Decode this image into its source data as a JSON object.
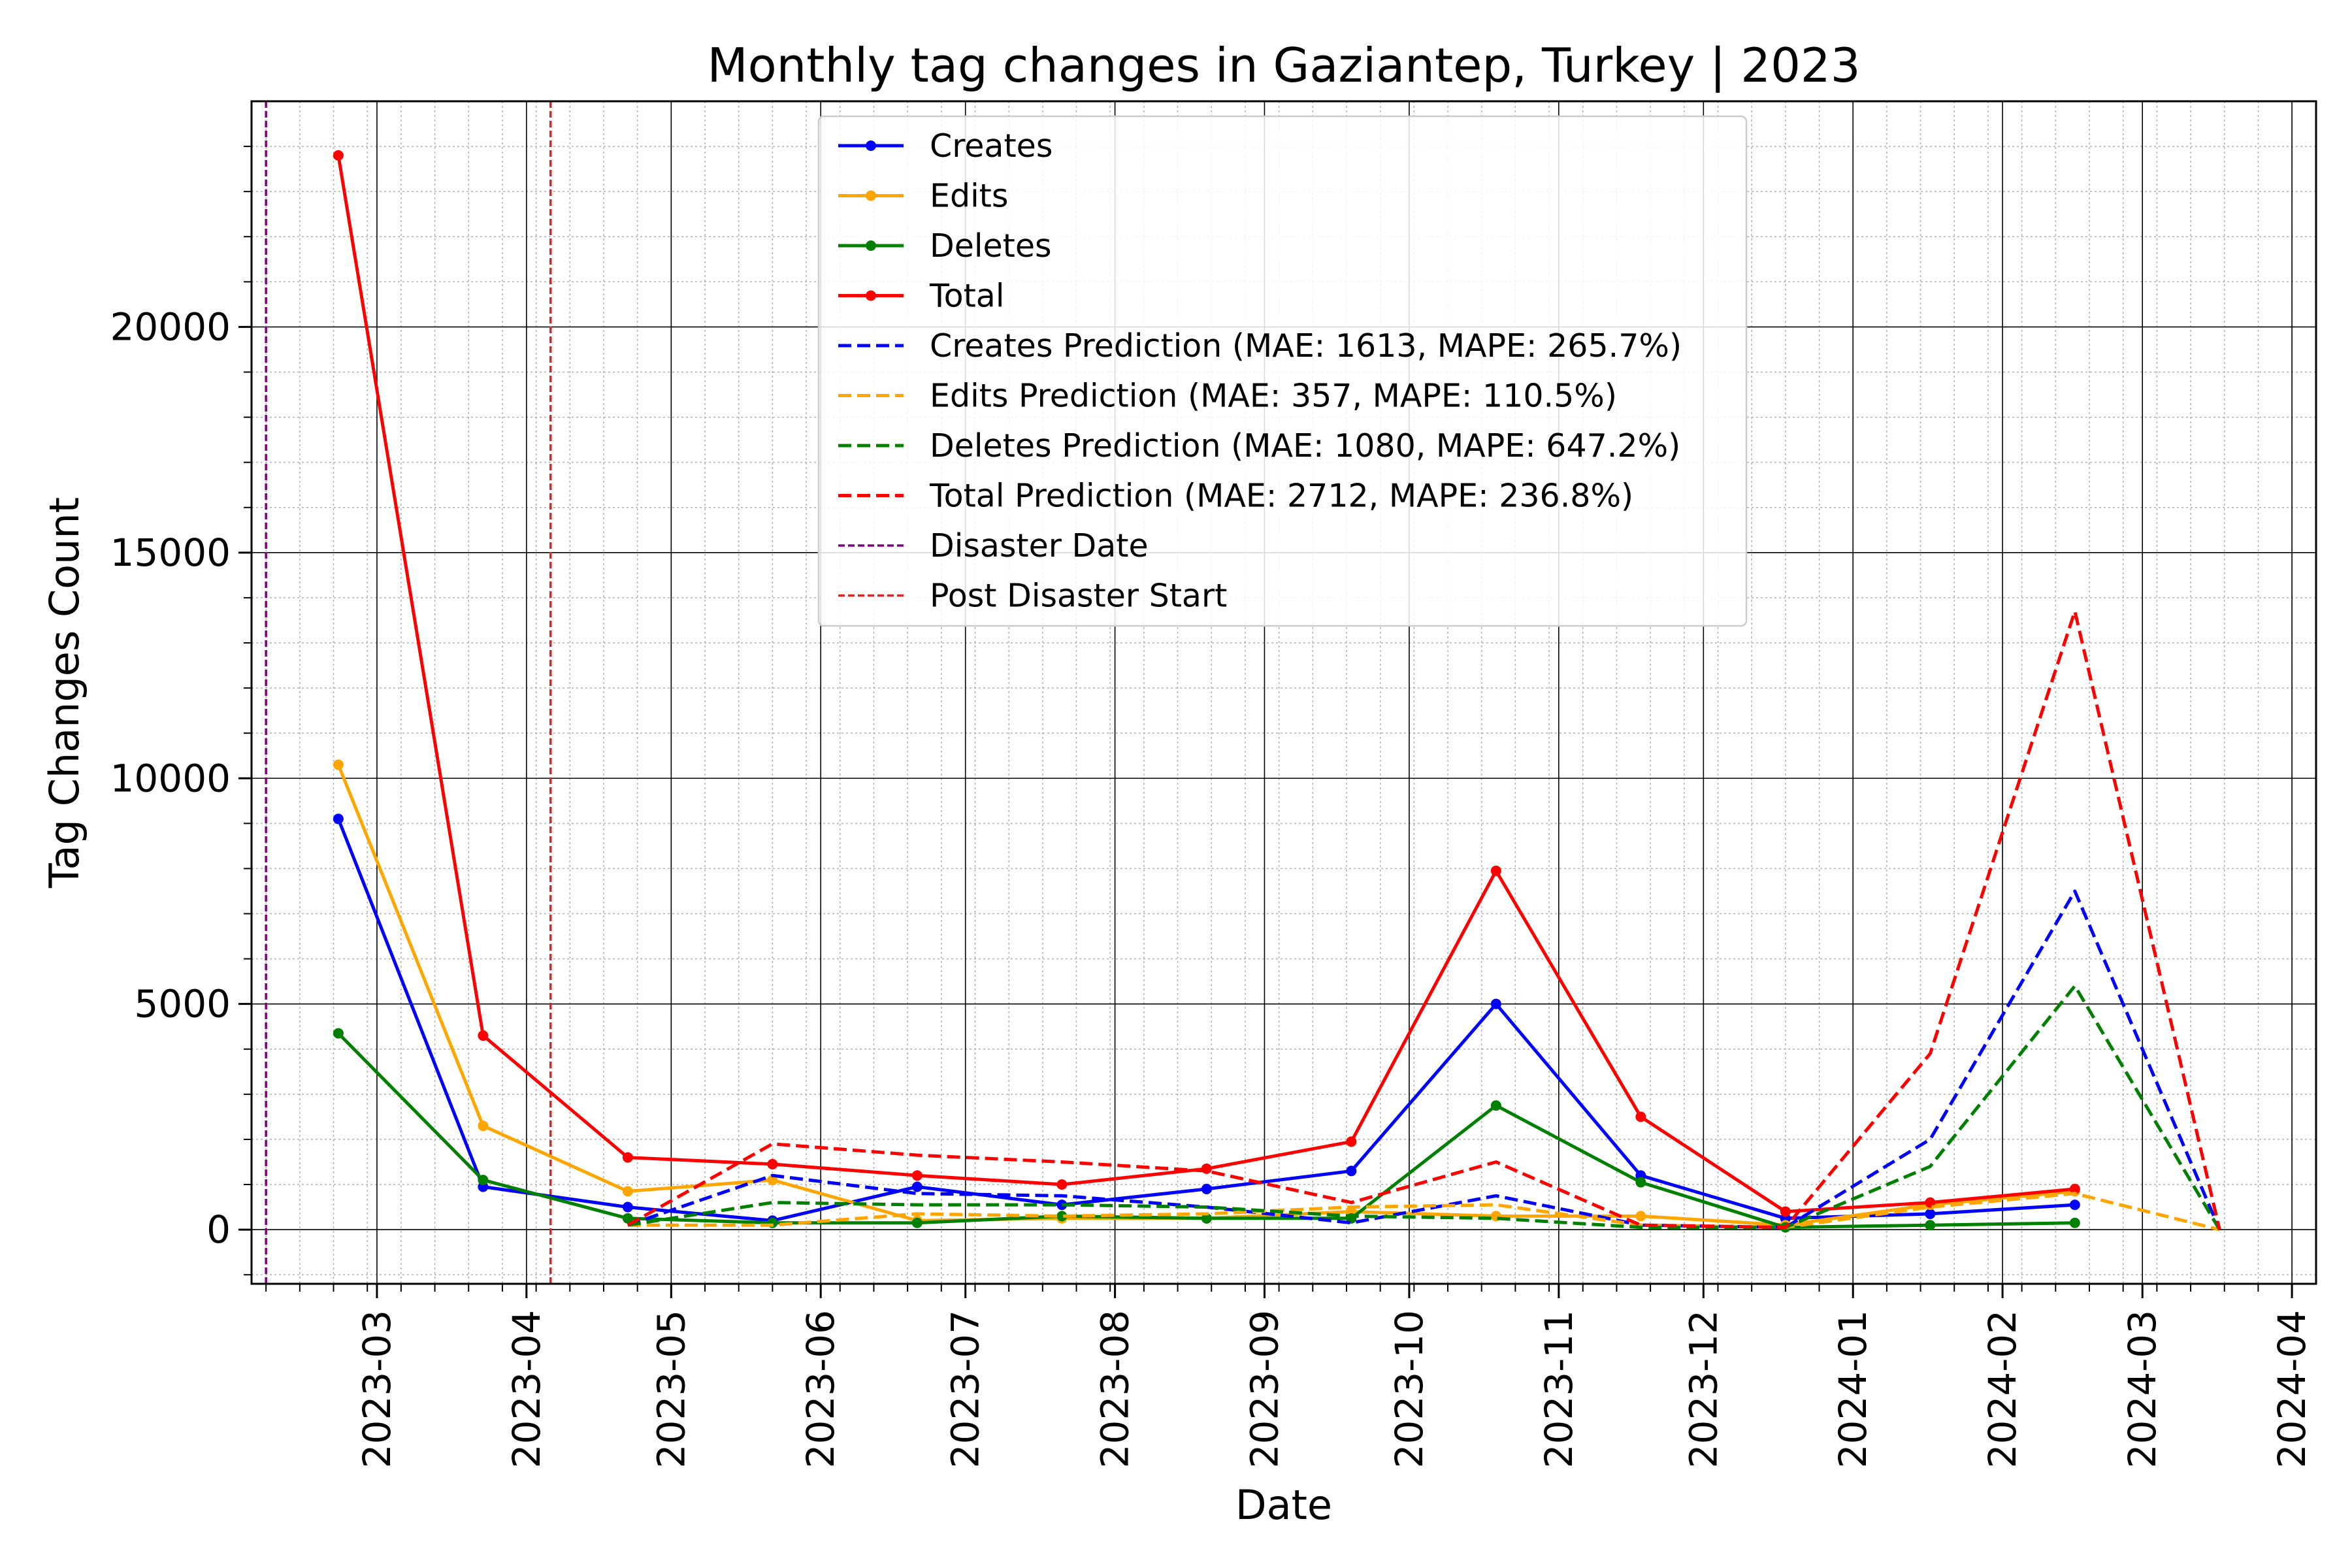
{
  "chart_data": {
    "type": "line",
    "title": "Monthly tag changes in Gaziantep, Turkey | 2023",
    "xlabel": "Date",
    "ylabel": "Tag Changes Count",
    "x_axis_type": "date",
    "xlim": [
      "2023-02-03",
      "2024-04-06"
    ],
    "ylim": [
      -1200,
      25000
    ],
    "y_ticks": [
      0,
      5000,
      10000,
      15000,
      20000
    ],
    "y_tick_labels": [
      "0",
      "5000",
      "10000",
      "15000",
      "20000"
    ],
    "x_ticks": [
      "2023-03-01",
      "2023-04-01",
      "2023-05-01",
      "2023-06-01",
      "2023-07-01",
      "2023-08-01",
      "2023-09-01",
      "2023-10-01",
      "2023-11-01",
      "2023-12-01",
      "2024-01-01",
      "2024-02-01",
      "2024-03-01",
      "2024-04-01"
    ],
    "x_tick_labels": [
      "2023-03",
      "2023-04",
      "2023-05",
      "2023-06",
      "2023-07",
      "2023-08",
      "2023-09",
      "2023-10",
      "2023-11",
      "2023-12",
      "2024-01",
      "2024-02",
      "2024-03",
      "2024-04"
    ],
    "grid": true,
    "minor_grid": true,
    "legend_position": "top-center",
    "series": [
      {
        "name": "Creates",
        "color": "#0000ff",
        "style": "solid",
        "marker": true,
        "x": [
          "2023-02-21",
          "2023-03-23",
          "2023-04-22",
          "2023-05-22",
          "2023-06-21",
          "2023-07-21",
          "2023-08-20",
          "2023-09-19",
          "2023-10-19",
          "2023-11-18",
          "2023-12-18",
          "2024-01-17",
          "2024-02-16"
        ],
        "y": [
          9100,
          950,
          500,
          200,
          950,
          550,
          900,
          1300,
          5000,
          1200,
          250,
          350,
          550
        ]
      },
      {
        "name": "Edits",
        "color": "#ffa500",
        "style": "solid",
        "marker": true,
        "x": [
          "2023-02-21",
          "2023-03-23",
          "2023-04-22",
          "2023-05-22",
          "2023-06-21",
          "2023-07-21",
          "2023-08-20",
          "2023-09-19",
          "2023-10-19",
          "2023-11-18",
          "2023-12-18",
          "2024-01-17",
          "2024-02-16"
        ],
        "y": [
          10300,
          2300,
          850,
          1100,
          200,
          250,
          250,
          400,
          300,
          300,
          100,
          550,
          850
        ]
      },
      {
        "name": "Deletes",
        "color": "#008000",
        "style": "solid",
        "marker": true,
        "x": [
          "2023-02-21",
          "2023-03-23",
          "2023-04-22",
          "2023-05-22",
          "2023-06-21",
          "2023-07-21",
          "2023-08-20",
          "2023-09-19",
          "2023-10-19",
          "2023-11-18",
          "2023-12-18",
          "2024-01-17",
          "2024-02-16"
        ],
        "y": [
          4350,
          1100,
          250,
          150,
          150,
          300,
          250,
          250,
          2750,
          1050,
          50,
          100,
          150
        ]
      },
      {
        "name": "Total",
        "color": "#ff0000",
        "style": "solid",
        "marker": true,
        "x": [
          "2023-02-21",
          "2023-03-23",
          "2023-04-22",
          "2023-05-22",
          "2023-06-21",
          "2023-07-21",
          "2023-08-20",
          "2023-09-19",
          "2023-10-19",
          "2023-11-18",
          "2023-12-18",
          "2024-01-17",
          "2024-02-16"
        ],
        "y": [
          23800,
          4300,
          1600,
          1450,
          1200,
          1000,
          1350,
          1950,
          7950,
          2500,
          400,
          600,
          900
        ]
      },
      {
        "name": "Creates Prediction (MAE: 1613, MAPE: 265.7%)",
        "color": "#0000ff",
        "style": "dashed",
        "marker": false,
        "x": [
          "2023-04-22",
          "2023-05-22",
          "2023-06-21",
          "2023-07-21",
          "2023-08-20",
          "2023-09-19",
          "2023-10-19",
          "2023-11-18",
          "2023-12-18",
          "2024-01-17",
          "2024-02-16",
          "2024-03-17"
        ],
        "y": [
          100,
          1200,
          800,
          750,
          500,
          150,
          750,
          100,
          50,
          2000,
          7500,
          0
        ]
      },
      {
        "name": "Edits Prediction (MAE: 357, MAPE: 110.5%)",
        "color": "#ffa500",
        "style": "dashed",
        "marker": false,
        "x": [
          "2023-04-22",
          "2023-05-22",
          "2023-06-21",
          "2023-07-21",
          "2023-08-20",
          "2023-09-19",
          "2023-10-19",
          "2023-11-18",
          "2023-12-18",
          "2024-01-17",
          "2024-02-16",
          "2024-03-17"
        ],
        "y": [
          100,
          100,
          350,
          300,
          350,
          500,
          550,
          100,
          50,
          500,
          800,
          0
        ]
      },
      {
        "name": "Deletes Prediction (MAE: 1080, MAPE: 647.2%)",
        "color": "#008000",
        "style": "dashed",
        "marker": false,
        "x": [
          "2023-04-22",
          "2023-05-22",
          "2023-06-21",
          "2023-07-21",
          "2023-08-20",
          "2023-09-19",
          "2023-10-19",
          "2023-11-18",
          "2023-12-18",
          "2024-01-17",
          "2024-02-16",
          "2024-03-17"
        ],
        "y": [
          100,
          600,
          550,
          550,
          500,
          300,
          250,
          50,
          50,
          1400,
          5400,
          0
        ]
      },
      {
        "name": "Total Prediction (MAE: 2712, MAPE: 236.8%)",
        "color": "#ff0000",
        "style": "dashed",
        "marker": false,
        "x": [
          "2023-04-22",
          "2023-05-22",
          "2023-06-21",
          "2023-07-21",
          "2023-08-20",
          "2023-09-19",
          "2023-10-19",
          "2023-11-18",
          "2023-12-18",
          "2024-01-17",
          "2024-02-16",
          "2024-03-17"
        ],
        "y": [
          100,
          1900,
          1650,
          1500,
          1300,
          600,
          1500,
          100,
          50,
          3900,
          13700,
          0
        ]
      }
    ],
    "vertical_lines": [
      {
        "name": "Disaster Date",
        "x": "2023-02-06",
        "color": "#800080",
        "style": "dashed"
      },
      {
        "name": "Post Disaster Start",
        "x": "2023-04-06",
        "color": "#d62728",
        "style": "dashed"
      }
    ]
  }
}
